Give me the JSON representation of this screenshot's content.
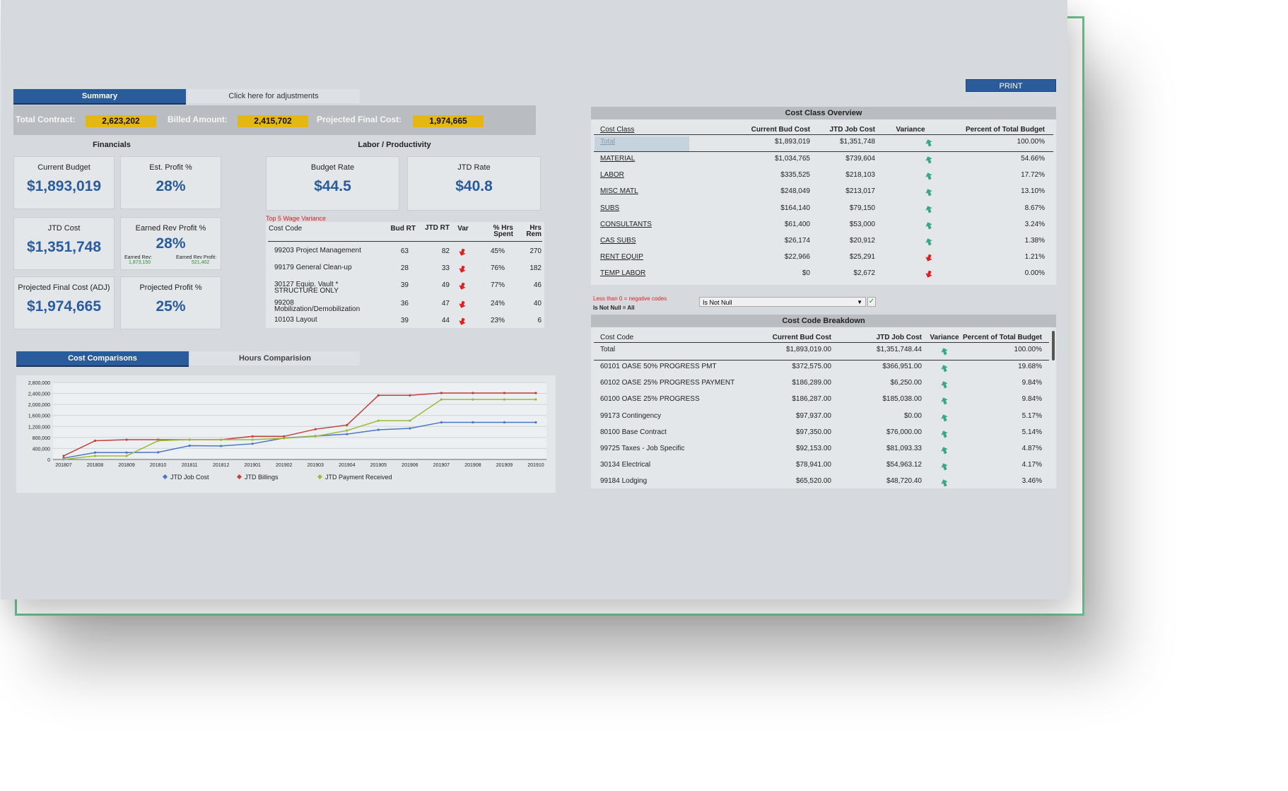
{
  "tabs": {
    "summary": "Summary",
    "adjustments": "Click here for adjustments",
    "cost_comparisons": "Cost Comparisons",
    "hours": "Hours Comparision"
  },
  "summary_bar": {
    "total_contract_label": "Total Contract:",
    "total_contract": "2,623,202",
    "billed_label": "Billed Amount:",
    "billed": "2,415,702",
    "projected_label": "Projected Final Cost:",
    "projected": "1,974,665"
  },
  "financials": {
    "title": "Financials",
    "current_budget_label": "Current Budget",
    "current_budget": "$1,893,019",
    "est_profit_label": "Est. Profit %",
    "est_profit": "28%",
    "jtd_cost_label": "JTD Cost",
    "jtd_cost": "$1,351,748",
    "earned_rev_profit_label": "Earned Rev Profit %",
    "earned_rev_profit": "28%",
    "earned_rev_label": "Earned Rev:",
    "earned_rev": "1,873,150",
    "earned_rev_profit_amt_label": "Earned Rev Profit:",
    "earned_rev_profit_amt": "521,402",
    "projected_final_label": "Projected Final Cost (ADJ)",
    "projected_final": "$1,974,665",
    "projected_profit_label": "Projected Profit %",
    "projected_profit": "25%"
  },
  "labor": {
    "title": "Labor / Productivity",
    "budget_rate_label": "Budget Rate",
    "budget_rate": "$44.5",
    "jtd_rate_label": "JTD Rate",
    "jtd_rate": "$40.8",
    "wage_title": "Top 5 Wage Variance",
    "headers": {
      "code": "Cost Code",
      "bud": "Bud RT",
      "jtd": "JTD RT",
      "var": "Var",
      "hrs_spent": "% Hrs Spent",
      "hrs_rem": "Hrs Rem"
    },
    "rows": [
      {
        "code": "99203 Project Management",
        "bud": "63",
        "jtd": "82",
        "spent": "45%",
        "rem": "270"
      },
      {
        "code": "99179 General Clean-up",
        "bud": "28",
        "jtd": "33",
        "spent": "76%",
        "rem": "182"
      },
      {
        "code": "30127 Equip. Vault * STRUCTURE ONLY",
        "bud": "39",
        "jtd": "49",
        "spent": "77%",
        "rem": "46"
      },
      {
        "code": "99208 Mobilization/Demobilization",
        "bud": "36",
        "jtd": "47",
        "spent": "24%",
        "rem": "40"
      },
      {
        "code": "10103 Layout",
        "bud": "39",
        "jtd": "44",
        "spent": "23%",
        "rem": "6"
      }
    ]
  },
  "print_label": "PRINT",
  "cost_class": {
    "title": "Cost Class Overview",
    "headers": {
      "cls": "Cost Class",
      "bud": "Current Bud Cost",
      "jtd": "JTD Job Cost",
      "var": "Variance",
      "pct": "Percent of Total Budget"
    },
    "total": {
      "name": "Total",
      "bud": "$1,893,019",
      "jtd": "$1,351,748",
      "dir": "up",
      "pct": "100.00%"
    },
    "rows": [
      {
        "name": "MATERIAL",
        "bud": "$1,034,765",
        "jtd": "$739,604",
        "dir": "up",
        "pct": "54.66%"
      },
      {
        "name": "LABOR",
        "bud": "$335,525",
        "jtd": "$218,103",
        "dir": "up",
        "pct": "17.72%"
      },
      {
        "name": "MISC MATL",
        "bud": "$248,049",
        "jtd": "$213,017",
        "dir": "up",
        "pct": "13.10%"
      },
      {
        "name": "SUBS",
        "bud": "$164,140",
        "jtd": "$79,150",
        "dir": "up",
        "pct": "8.67%"
      },
      {
        "name": "CONSULTANTS",
        "bud": "$61,400",
        "jtd": "$53,000",
        "dir": "up",
        "pct": "3.24%"
      },
      {
        "name": "CAS SUBS",
        "bud": "$26,174",
        "jtd": "$20,912",
        "dir": "up",
        "pct": "1.38%"
      },
      {
        "name": "RENT EQUIP",
        "bud": "$22,966",
        "jtd": "$25,291",
        "dir": "down",
        "pct": "1.21%"
      },
      {
        "name": "TEMP LABOR",
        "bud": "$0",
        "jtd": "$2,672",
        "dir": "down",
        "pct": "0.00%"
      }
    ]
  },
  "filter": {
    "note1": "Less than 0 = negative codes",
    "note2": "Is Not Null = All",
    "selected": "Is Not Null"
  },
  "cost_code": {
    "title": "Cost Code Breakdown",
    "headers": {
      "code": "Cost Code",
      "bud": "Current Bud Cost",
      "jtd": "JTD Job Cost",
      "var": "Variance",
      "pct": "Percent of Total Budget"
    },
    "total": {
      "name": "Total",
      "bud": "$1,893,019.00",
      "jtd": "$1,351,748.44",
      "dir": "up",
      "pct": "100.00%"
    },
    "rows": [
      {
        "name": "60101 OASE 50% PROGRESS PMT",
        "bud": "$372,575.00",
        "jtd": "$366,951.00",
        "dir": "up",
        "pct": "19.68%"
      },
      {
        "name": "60102 OASE 25% PROGRESS PAYMENT",
        "bud": "$186,289.00",
        "jtd": "$6,250.00",
        "dir": "up",
        "pct": "9.84%"
      },
      {
        "name": "60100 OASE 25% PROGRESS",
        "bud": "$186,287.00",
        "jtd": "$185,038.00",
        "dir": "up",
        "pct": "9.84%"
      },
      {
        "name": "99173 Contingency",
        "bud": "$97,937.00",
        "jtd": "$0.00",
        "dir": "up",
        "pct": "5.17%"
      },
      {
        "name": "80100 Base Contract",
        "bud": "$97,350.00",
        "jtd": "$76,000.00",
        "dir": "up",
        "pct": "5.14%"
      },
      {
        "name": "99725 Taxes - Job Specific",
        "bud": "$92,153.00",
        "jtd": "$81,093.33",
        "dir": "up",
        "pct": "4.87%"
      },
      {
        "name": "30134 Electrical",
        "bud": "$78,941.00",
        "jtd": "$54,963.12",
        "dir": "up",
        "pct": "4.17%"
      },
      {
        "name": "99184 Lodging",
        "bud": "$65,520.00",
        "jtd": "$48,720.40",
        "dir": "up",
        "pct": "3.46%"
      }
    ]
  },
  "colors": {
    "up": "#3aa886",
    "down": "#e02020",
    "accent": "#2a5b9a",
    "highlight": "#e4b814"
  },
  "chart_data": {
    "type": "line",
    "x": [
      "201807",
      "201808",
      "201809",
      "201810",
      "201811",
      "201812",
      "201901",
      "201902",
      "201903",
      "201904",
      "201905",
      "201906",
      "201907",
      "201908",
      "201909",
      "201910"
    ],
    "ylim": [
      0,
      2800000
    ],
    "yticks": [
      "0",
      "400,000",
      "800,000",
      "1,200,000",
      "1,600,000",
      "2,000,000",
      "2,400,000",
      "2,800,000"
    ],
    "series": [
      {
        "name": "JTD Job Cost",
        "color": "#4a74c4",
        "values": [
          50000,
          250000,
          250000,
          260000,
          500000,
          490000,
          570000,
          780000,
          850000,
          920000,
          1080000,
          1130000,
          1350000,
          1350000,
          1350000,
          1350000
        ]
      },
      {
        "name": "JTD Billings",
        "color": "#c0403a",
        "values": [
          130000,
          680000,
          720000,
          720000,
          720000,
          720000,
          840000,
          840000,
          1100000,
          1250000,
          2330000,
          2330000,
          2415000,
          2415000,
          2415000,
          2415000
        ]
      },
      {
        "name": "JTD Payment Received",
        "color": "#9cba3a",
        "values": [
          0,
          130000,
          130000,
          680000,
          720000,
          720000,
          720000,
          770000,
          840000,
          1050000,
          1410000,
          1410000,
          2180000,
          2180000,
          2180000,
          2180000
        ]
      }
    ]
  }
}
